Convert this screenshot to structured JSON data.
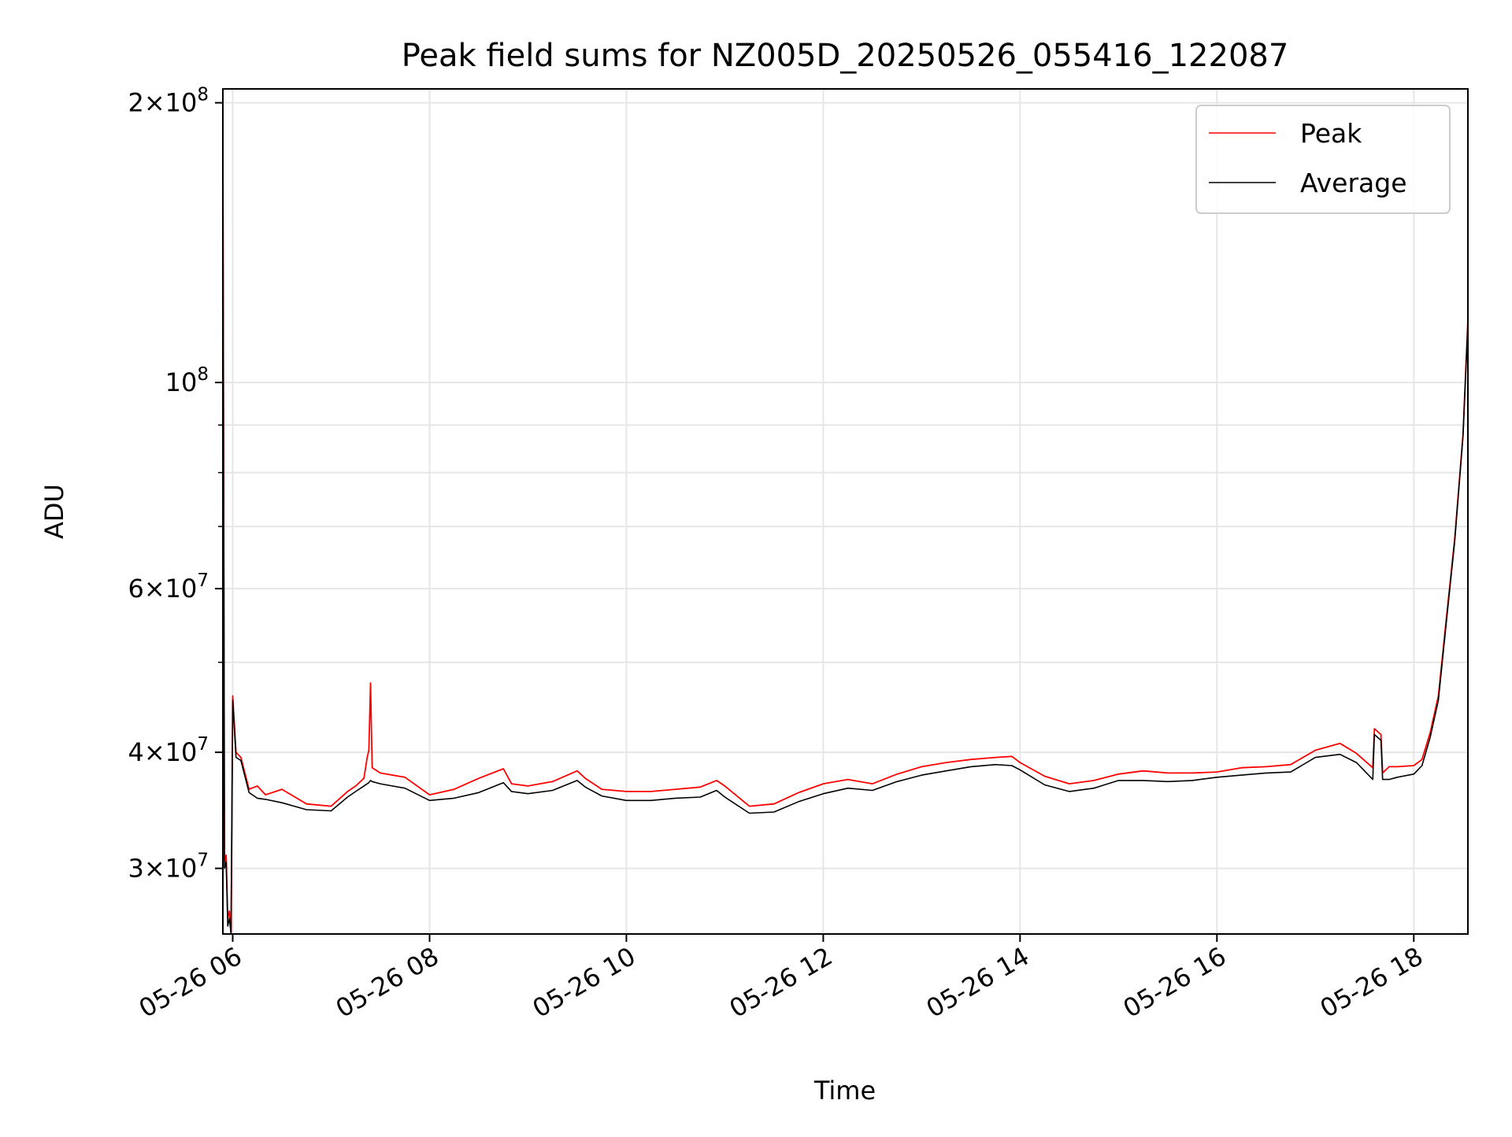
{
  "chart_data": {
    "type": "line",
    "title": "Peak field sums for NZ005D_20250526_055416_122087",
    "xlabel": "Time",
    "ylabel": "ADU",
    "y_scale": "log",
    "ylim": [
      25500000,
      207000000
    ],
    "xlim": [
      "2025-05-26 05:54",
      "2025-05-26 18:33"
    ],
    "grid": true,
    "legend_position": "top-right",
    "x_ticks": [
      {
        "value": "2025-05-26 06:00",
        "label": "05-26 06"
      },
      {
        "value": "2025-05-26 08:00",
        "label": "05-26 08"
      },
      {
        "value": "2025-05-26 10:00",
        "label": "05-26 10"
      },
      {
        "value": "2025-05-26 12:00",
        "label": "05-26 12"
      },
      {
        "value": "2025-05-26 14:00",
        "label": "05-26 14"
      },
      {
        "value": "2025-05-26 16:00",
        "label": "05-26 16"
      },
      {
        "value": "2025-05-26 18:00",
        "label": "05-26 18"
      }
    ],
    "y_ticks_major": [
      {
        "value": 200000000,
        "mantissa": "2",
        "exponent": "8"
      },
      {
        "value": 100000000,
        "mantissa": "",
        "exponent": "8"
      },
      {
        "value": 60000000,
        "mantissa": "6",
        "exponent": "7"
      },
      {
        "value": 40000000,
        "mantissa": "4",
        "exponent": "7"
      },
      {
        "value": 30000000,
        "mantissa": "3",
        "exponent": "7"
      }
    ],
    "y_ticks_minor": [
      90000000,
      80000000,
      70000000,
      50000000
    ],
    "series": [
      {
        "name": "Peak",
        "color": "#ff0000",
        "x": [
          "2025-05-26 05:54",
          "2025-05-26 05:55",
          "2025-05-26 05:56",
          "2025-05-26 05:57",
          "2025-05-26 05:58",
          "2025-05-26 05:59",
          "2025-05-26 06:00",
          "2025-05-26 06:02",
          "2025-05-26 06:05",
          "2025-05-26 06:10",
          "2025-05-26 06:15",
          "2025-05-26 06:20",
          "2025-05-26 06:30",
          "2025-05-26 06:45",
          "2025-05-26 07:00",
          "2025-05-26 07:10",
          "2025-05-26 07:15",
          "2025-05-26 07:20",
          "2025-05-26 07:22",
          "2025-05-26 07:23",
          "2025-05-26 07:24",
          "2025-05-26 07:25",
          "2025-05-26 07:30",
          "2025-05-26 07:45",
          "2025-05-26 08:00",
          "2025-05-26 08:15",
          "2025-05-26 08:30",
          "2025-05-26 08:45",
          "2025-05-26 08:50",
          "2025-05-26 09:00",
          "2025-05-26 09:15",
          "2025-05-26 09:30",
          "2025-05-26 09:35",
          "2025-05-26 09:45",
          "2025-05-26 10:00",
          "2025-05-26 10:15",
          "2025-05-26 10:30",
          "2025-05-26 10:45",
          "2025-05-26 10:55",
          "2025-05-26 11:00",
          "2025-05-26 11:15",
          "2025-05-26 11:30",
          "2025-05-26 11:45",
          "2025-05-26 12:00",
          "2025-05-26 12:15",
          "2025-05-26 12:30",
          "2025-05-26 12:45",
          "2025-05-26 13:00",
          "2025-05-26 13:15",
          "2025-05-26 13:30",
          "2025-05-26 13:45",
          "2025-05-26 13:55",
          "2025-05-26 14:00",
          "2025-05-26 14:15",
          "2025-05-26 14:30",
          "2025-05-26 14:45",
          "2025-05-26 15:00",
          "2025-05-26 15:15",
          "2025-05-26 15:30",
          "2025-05-26 15:45",
          "2025-05-26 16:00",
          "2025-05-26 16:15",
          "2025-05-26 16:30",
          "2025-05-26 16:45",
          "2025-05-26 17:00",
          "2025-05-26 17:15",
          "2025-05-26 17:25",
          "2025-05-26 17:35",
          "2025-05-26 17:36",
          "2025-05-26 17:40",
          "2025-05-26 17:41",
          "2025-05-26 17:45",
          "2025-05-26 17:50",
          "2025-05-26 18:00",
          "2025-05-26 18:05",
          "2025-05-26 18:10",
          "2025-05-26 18:15",
          "2025-05-26 18:20",
          "2025-05-26 18:25",
          "2025-05-26 18:30",
          "2025-05-26 18:33"
        ],
        "values": [
          185000000,
          30500000,
          31000000,
          26500000,
          27000000,
          25500000,
          46000000,
          40000000,
          39500000,
          36500000,
          36800000,
          36000000,
          36500000,
          35200000,
          35000000,
          36300000,
          36800000,
          37500000,
          39500000,
          40200000,
          47500000,
          38500000,
          38000000,
          37600000,
          36000000,
          36500000,
          37500000,
          38400000,
          37000000,
          36800000,
          37200000,
          38200000,
          37500000,
          36500000,
          36300000,
          36300000,
          36500000,
          36700000,
          37300000,
          36800000,
          35000000,
          35200000,
          36200000,
          37000000,
          37400000,
          37000000,
          37900000,
          38600000,
          39000000,
          39300000,
          39500000,
          39600000,
          39000000,
          37700000,
          37000000,
          37300000,
          37900000,
          38200000,
          38000000,
          38000000,
          38100000,
          38500000,
          38600000,
          38800000,
          40200000,
          40900000,
          39900000,
          38500000,
          42400000,
          41800000,
          38000000,
          38600000,
          38600000,
          38700000,
          39300000,
          42000000,
          46000000,
          56000000,
          68000000,
          88000000,
          117000000
        ]
      },
      {
        "name": "Average",
        "color": "#000000",
        "x": [
          "2025-05-26 05:54",
          "2025-05-26 05:55",
          "2025-05-26 05:56",
          "2025-05-26 05:57",
          "2025-05-26 05:58",
          "2025-05-26 05:59",
          "2025-05-26 06:00",
          "2025-05-26 06:02",
          "2025-05-26 06:05",
          "2025-05-26 06:10",
          "2025-05-26 06:15",
          "2025-05-26 06:20",
          "2025-05-26 06:30",
          "2025-05-26 06:45",
          "2025-05-26 07:00",
          "2025-05-26 07:10",
          "2025-05-26 07:15",
          "2025-05-26 07:20",
          "2025-05-26 07:22",
          "2025-05-26 07:23",
          "2025-05-26 07:24",
          "2025-05-26 07:25",
          "2025-05-26 07:30",
          "2025-05-26 07:45",
          "2025-05-26 08:00",
          "2025-05-26 08:15",
          "2025-05-26 08:30",
          "2025-05-26 08:45",
          "2025-05-26 08:50",
          "2025-05-26 09:00",
          "2025-05-26 09:15",
          "2025-05-26 09:30",
          "2025-05-26 09:35",
          "2025-05-26 09:45",
          "2025-05-26 10:00",
          "2025-05-26 10:15",
          "2025-05-26 10:30",
          "2025-05-26 10:45",
          "2025-05-26 10:55",
          "2025-05-26 11:00",
          "2025-05-26 11:15",
          "2025-05-26 11:30",
          "2025-05-26 11:45",
          "2025-05-26 12:00",
          "2025-05-26 12:15",
          "2025-05-26 12:30",
          "2025-05-26 12:45",
          "2025-05-26 13:00",
          "2025-05-26 13:15",
          "2025-05-26 13:30",
          "2025-05-26 13:45",
          "2025-05-26 13:55",
          "2025-05-26 14:00",
          "2025-05-26 14:15",
          "2025-05-26 14:30",
          "2025-05-26 14:45",
          "2025-05-26 15:00",
          "2025-05-26 15:15",
          "2025-05-26 15:30",
          "2025-05-26 15:45",
          "2025-05-26 16:00",
          "2025-05-26 16:15",
          "2025-05-26 16:30",
          "2025-05-26 16:45",
          "2025-05-26 17:00",
          "2025-05-26 17:15",
          "2025-05-26 17:25",
          "2025-05-26 17:35",
          "2025-05-26 17:36",
          "2025-05-26 17:40",
          "2025-05-26 17:41",
          "2025-05-26 17:45",
          "2025-05-26 17:50",
          "2025-05-26 18:00",
          "2025-05-26 18:05",
          "2025-05-26 18:10",
          "2025-05-26 18:15",
          "2025-05-26 18:20",
          "2025-05-26 18:25",
          "2025-05-26 18:30",
          "2025-05-26 18:33"
        ],
        "values": [
          185000000,
          30000000,
          30500000,
          26000000,
          26500000,
          25500000,
          45500000,
          39500000,
          39200000,
          36200000,
          35700000,
          35600000,
          35300000,
          34700000,
          34600000,
          35800000,
          36300000,
          36800000,
          37000000,
          37100000,
          37300000,
          37200000,
          37000000,
          36600000,
          35500000,
          35700000,
          36200000,
          37100000,
          36300000,
          36100000,
          36400000,
          37300000,
          36700000,
          35900000,
          35500000,
          35500000,
          35700000,
          35800000,
          36400000,
          35800000,
          34400000,
          34500000,
          35400000,
          36100000,
          36600000,
          36400000,
          37200000,
          37800000,
          38200000,
          38600000,
          38800000,
          38700000,
          38300000,
          36900000,
          36300000,
          36600000,
          37300000,
          37300000,
          37200000,
          37300000,
          37600000,
          37800000,
          38000000,
          38100000,
          39500000,
          39800000,
          39000000,
          37400000,
          41800000,
          41200000,
          37400000,
          37400000,
          37600000,
          37900000,
          38700000,
          41500000,
          45500000,
          55500000,
          67500000,
          87500000,
          116000000
        ]
      }
    ]
  }
}
